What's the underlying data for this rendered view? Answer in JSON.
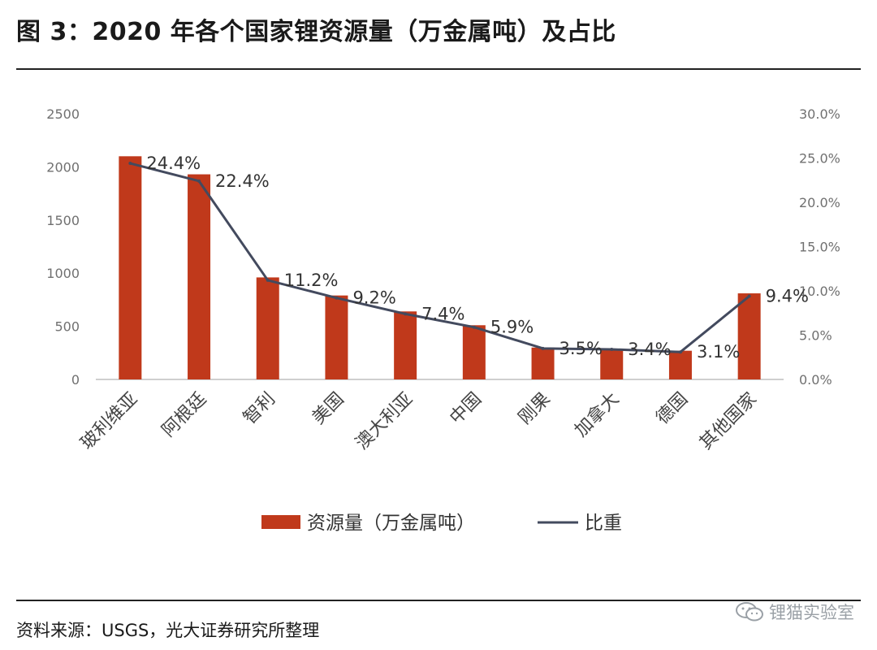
{
  "title": "图 3：2020 年各个国家锂资源量（万金属吨）及占比",
  "source": "资料来源：USGS，光大证券研究所整理",
  "watermark": "锂猫实验室",
  "colors": {
    "bar": "#C0391B",
    "line": "#434A5E",
    "axis": "#bfbfbf"
  },
  "chart_data": {
    "type": "bar",
    "categories": [
      "玻利维亚",
      "阿根廷",
      "智利",
      "美国",
      "澳大利亚",
      "中国",
      "刚果",
      "加拿大",
      "德国",
      "其他国家"
    ],
    "series": [
      {
        "name": "资源量（万金属吨）",
        "type": "bar",
        "axis": "left",
        "values": [
          2100,
          1930,
          960,
          790,
          640,
          510,
          300,
          290,
          270,
          810
        ]
      },
      {
        "name": "比重",
        "type": "line",
        "axis": "right",
        "values": [
          24.4,
          22.4,
          11.2,
          9.2,
          7.4,
          5.9,
          3.5,
          3.4,
          3.1,
          9.4
        ],
        "labels": [
          "24.4%",
          "22.4%",
          "11.2%",
          "9.2%",
          "7.4%",
          "5.9%",
          "3.5%",
          "3.4%",
          "3.1%",
          "9.4%"
        ]
      }
    ],
    "y_left": {
      "min": 0,
      "max": 2500,
      "ticks": [
        "0",
        "500",
        "1000",
        "1500",
        "2000",
        "2500"
      ]
    },
    "y_right": {
      "min": 0,
      "max": 30,
      "ticks": [
        "0.0%",
        "5.0%",
        "10.0%",
        "15.0%",
        "20.0%",
        "25.0%",
        "30.0%"
      ]
    },
    "legend_position": "bottom",
    "grid": false
  }
}
